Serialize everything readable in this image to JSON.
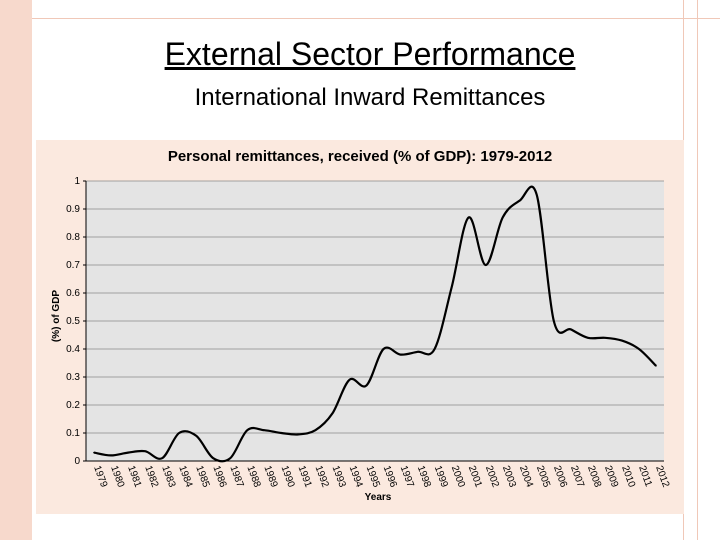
{
  "slide": {
    "title": "External Sector Performance",
    "subtitle": "International Inward Remittances"
  },
  "chart_data": {
    "type": "line",
    "title": "Personal remittances, received (% of GDP): 1979-2012",
    "xlabel": "Years",
    "ylabel": "(%) of GDP",
    "ylim": [
      0,
      1
    ],
    "yticks": [
      "0",
      "0.1",
      "0.2",
      "0.3",
      "0.4",
      "0.5",
      "0.6",
      "0.7",
      "0.8",
      "0.9",
      "1"
    ],
    "grid": true,
    "line_color": "#000000",
    "plot_background": "#e4e4e4",
    "categories": [
      "1979",
      "1980",
      "1981",
      "1982",
      "1983",
      "1984",
      "1985",
      "1986",
      "1987",
      "1988",
      "1989",
      "1990",
      "1991",
      "1992",
      "1993",
      "1994",
      "1995",
      "1996",
      "1997",
      "1998",
      "1999",
      "2000",
      "2001",
      "2002",
      "2003",
      "2004",
      "2005",
      "2006",
      "2007",
      "2008",
      "2009",
      "2010",
      "2011",
      "2012"
    ],
    "values": [
      0.03,
      0.02,
      0.03,
      0.035,
      0.01,
      0.1,
      0.09,
      0.01,
      0.01,
      0.11,
      0.11,
      0.1,
      0.095,
      0.11,
      0.17,
      0.29,
      0.27,
      0.4,
      0.38,
      0.39,
      0.4,
      0.62,
      0.87,
      0.7,
      0.87,
      0.93,
      0.95,
      0.5,
      0.47,
      0.44,
      0.44,
      0.43,
      0.4,
      0.34
    ]
  }
}
